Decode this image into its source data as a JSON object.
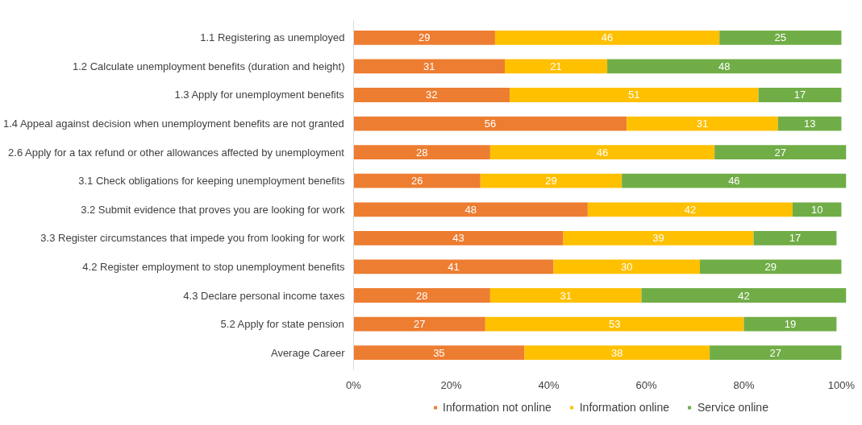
{
  "chart_data": {
    "type": "bar",
    "orientation": "horizontal",
    "stacked": true,
    "categories": [
      "1.1 Registering as unemployed",
      "1.2 Calculate unemployment benefits (duration and height)",
      "1.3 Apply for unemployment benefits",
      "1.4 Appeal against decision when unemployment benefits are not granted",
      "2.6 Apply for a tax refund or other allowances affected by unemployment",
      "3.1 Check obligations for keeping unemployment benefits",
      "3.2 Submit evidence that proves you are looking for work",
      "3.3 Register circumstances that impede you from looking for work",
      "4.2 Register employment to stop unemployment benefits",
      "4.3 Declare personal income taxes",
      "5.2 Apply for state pension",
      "Average Career"
    ],
    "series": [
      {
        "name": "Information not online",
        "color": "#ed7d31",
        "values": [
          29,
          31,
          32,
          56,
          28,
          26,
          48,
          43,
          41,
          28,
          27,
          35
        ]
      },
      {
        "name": "Information online",
        "color": "#ffc000",
        "values": [
          46,
          21,
          51,
          31,
          46,
          29,
          42,
          39,
          30,
          31,
          53,
          38
        ]
      },
      {
        "name": "Service online",
        "color": "#70ad47",
        "values": [
          25,
          48,
          17,
          13,
          27,
          46,
          10,
          17,
          29,
          42,
          19,
          27
        ]
      }
    ],
    "xlim": [
      0,
      101
    ],
    "xticks": [
      {
        "value": 0,
        "label": "0%"
      },
      {
        "value": 20,
        "label": "20%"
      },
      {
        "value": 40,
        "label": "40%"
      },
      {
        "value": 60,
        "label": "60%"
      },
      {
        "value": 80,
        "label": "80%"
      },
      {
        "value": 100,
        "label": "100%"
      }
    ],
    "data_labels": true,
    "grid": false,
    "legend": "bottom"
  }
}
